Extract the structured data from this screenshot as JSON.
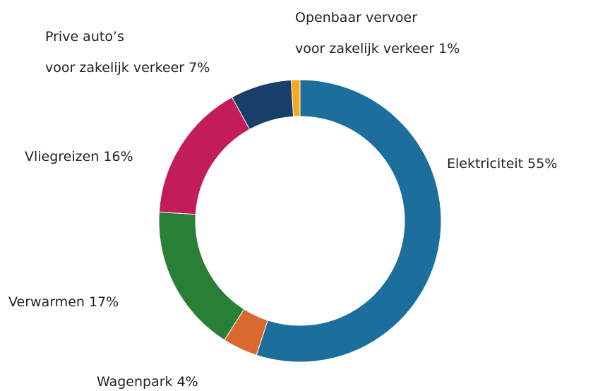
{
  "chart_data": {
    "type": "donut",
    "categories": [
      [
        "Elektriciteit"
      ],
      [
        "Wagenpark"
      ],
      [
        "Verwarmen"
      ],
      [
        "Vliegreizen"
      ],
      [
        "Prive auto’s",
        "voor zakelijk verkeer"
      ],
      [
        "Openbaar vervoer",
        "voor zakelijk verkeer"
      ]
    ],
    "values": [
      55,
      4,
      17,
      16,
      7,
      1
    ],
    "value_labels": [
      "55%",
      "4%",
      "17%",
      "16%",
      "7%",
      "1%"
    ],
    "colors": [
      "#1c6f9c",
      "#d9692f",
      "#2a7f36",
      "#c21d5a",
      "#173f68",
      "#f5a81c"
    ]
  }
}
